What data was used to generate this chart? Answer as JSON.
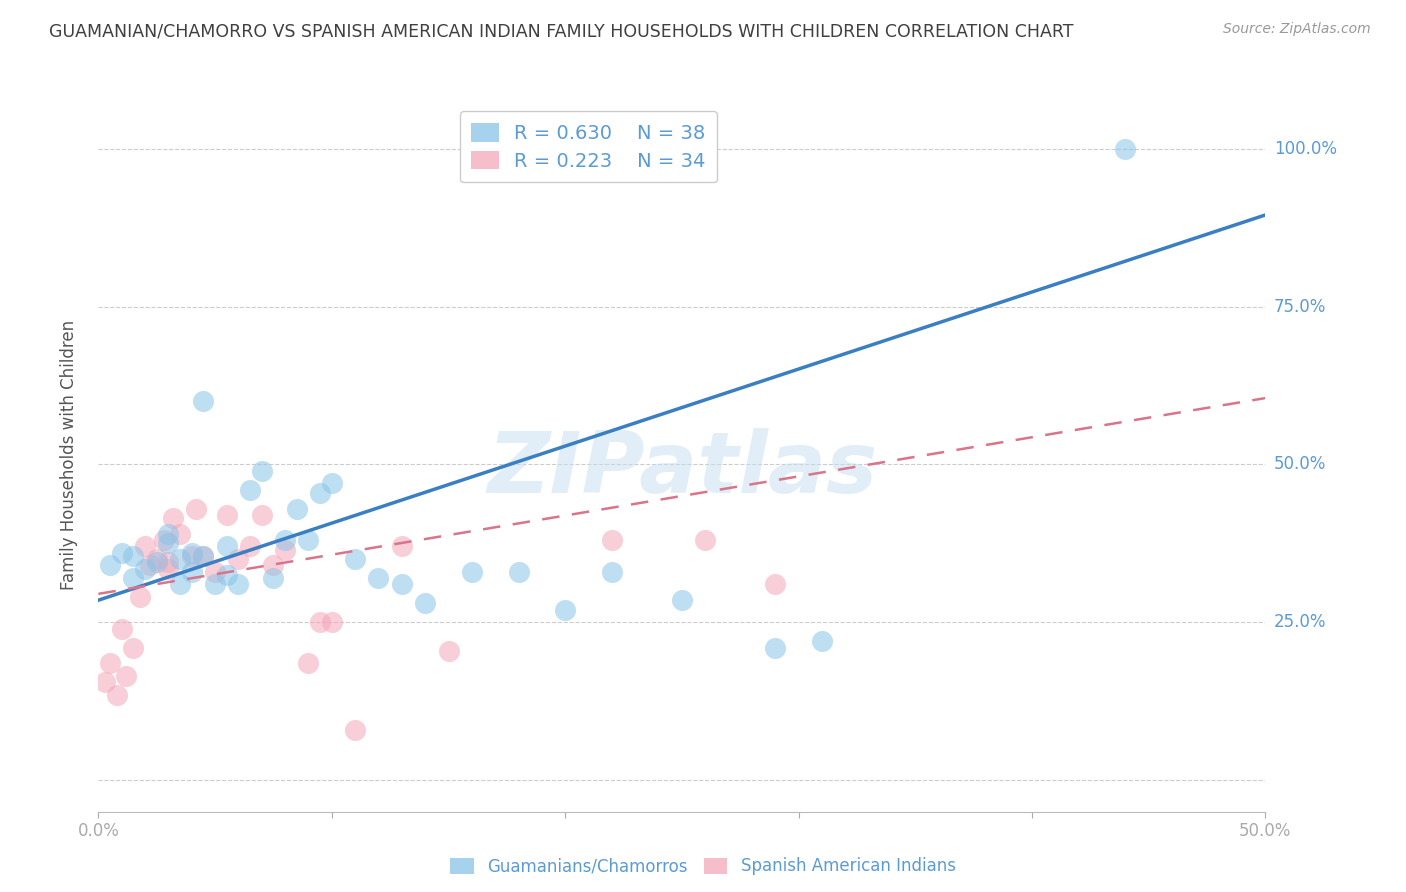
{
  "title": "GUAMANIAN/CHAMORRO VS SPANISH AMERICAN INDIAN FAMILY HOUSEHOLDS WITH CHILDREN CORRELATION CHART",
  "source": "Source: ZipAtlas.com",
  "ylabel": "Family Households with Children",
  "watermark": "ZIPatlas",
  "xlim": [
    0.0,
    0.5
  ],
  "ylim": [
    -0.05,
    1.08
  ],
  "yticks": [
    0.0,
    0.25,
    0.5,
    0.75,
    1.0
  ],
  "ytick_labels": [
    "",
    "25.0%",
    "50.0%",
    "75.0%",
    "100.0%"
  ],
  "xticks": [
    0.0,
    0.1,
    0.2,
    0.3,
    0.4,
    0.5
  ],
  "xtick_labels": [
    "0.0%",
    "",
    "",
    "",
    "",
    "50.0%"
  ],
  "blue_R": 0.63,
  "blue_N": 38,
  "pink_R": 0.223,
  "pink_N": 34,
  "blue_color": "#89c4e8",
  "pink_color": "#f4a7b9",
  "blue_line_color": "#3a7fc1",
  "pink_line_color": "#d9748a",
  "blue_scatter_x": [
    0.005,
    0.01,
    0.015,
    0.015,
    0.02,
    0.025,
    0.03,
    0.03,
    0.035,
    0.035,
    0.04,
    0.04,
    0.045,
    0.045,
    0.05,
    0.055,
    0.055,
    0.06,
    0.065,
    0.07,
    0.075,
    0.08,
    0.085,
    0.09,
    0.095,
    0.1,
    0.11,
    0.12,
    0.13,
    0.14,
    0.16,
    0.18,
    0.2,
    0.22,
    0.25,
    0.29,
    0.31,
    0.44
  ],
  "blue_scatter_y": [
    0.34,
    0.36,
    0.32,
    0.355,
    0.335,
    0.345,
    0.375,
    0.39,
    0.31,
    0.35,
    0.33,
    0.36,
    0.355,
    0.6,
    0.31,
    0.325,
    0.37,
    0.31,
    0.46,
    0.49,
    0.32,
    0.38,
    0.43,
    0.38,
    0.455,
    0.47,
    0.35,
    0.32,
    0.31,
    0.28,
    0.33,
    0.33,
    0.27,
    0.33,
    0.285,
    0.21,
    0.22,
    1.0
  ],
  "pink_scatter_x": [
    0.003,
    0.005,
    0.008,
    0.01,
    0.012,
    0.015,
    0.018,
    0.02,
    0.022,
    0.025,
    0.028,
    0.03,
    0.03,
    0.032,
    0.035,
    0.04,
    0.042,
    0.045,
    0.05,
    0.055,
    0.06,
    0.065,
    0.07,
    0.075,
    0.08,
    0.09,
    0.095,
    0.1,
    0.11,
    0.13,
    0.15,
    0.22,
    0.26,
    0.29
  ],
  "pink_scatter_y": [
    0.155,
    0.185,
    0.135,
    0.24,
    0.165,
    0.21,
    0.29,
    0.37,
    0.34,
    0.35,
    0.38,
    0.335,
    0.345,
    0.415,
    0.39,
    0.355,
    0.43,
    0.355,
    0.33,
    0.42,
    0.35,
    0.37,
    0.42,
    0.34,
    0.365,
    0.185,
    0.25,
    0.25,
    0.08,
    0.37,
    0.205,
    0.38,
    0.38,
    0.31
  ],
  "blue_line_x": [
    0.0,
    0.5
  ],
  "blue_line_y": [
    0.285,
    0.895
  ],
  "pink_line_x": [
    0.0,
    0.5
  ],
  "pink_line_y": [
    0.295,
    0.605
  ],
  "grid_color": "#cccccc",
  "background_color": "#ffffff",
  "title_color": "#404040",
  "tick_label_color": "#5b9bd5"
}
